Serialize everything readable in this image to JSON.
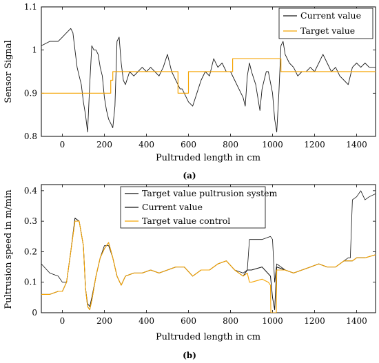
{
  "chart_data": [
    {
      "type": "line",
      "caption": "(a)",
      "xlabel": "Pultruded length in cm",
      "ylabel": "Sensor Signal",
      "xlim": [
        -100,
        1490
      ],
      "ylim": [
        0.8,
        1.1
      ],
      "xticks": [
        0,
        200,
        400,
        600,
        800,
        1000,
        1200,
        1400
      ],
      "yticks": [
        0.8,
        0.9,
        1,
        1.1
      ],
      "ytick_labels": [
        "0.8",
        "0.9",
        "1",
        "1.1"
      ],
      "legend_position": "top-right",
      "colors": {
        "current": "#1a1a1a",
        "target": "#f5a300"
      },
      "series": [
        {
          "name": "Current value",
          "x": [
            -100,
            -60,
            -20,
            0,
            20,
            40,
            50,
            60,
            70,
            80,
            90,
            100,
            110,
            120,
            130,
            140,
            150,
            160,
            170,
            180,
            190,
            200,
            210,
            220,
            230,
            240,
            250,
            260,
            270,
            280,
            290,
            300,
            320,
            340,
            360,
            380,
            400,
            420,
            440,
            460,
            480,
            500,
            520,
            540,
            560,
            570,
            580,
            600,
            620,
            640,
            660,
            680,
            700,
            720,
            740,
            760,
            780,
            800,
            820,
            840,
            860,
            870,
            880,
            890,
            900,
            920,
            940,
            950,
            960,
            970,
            980,
            1000,
            1010,
            1020,
            1030,
            1040,
            1050,
            1060,
            1080,
            1100,
            1120,
            1140,
            1160,
            1180,
            1200,
            1220,
            1240,
            1260,
            1280,
            1300,
            1320,
            1340,
            1360,
            1380,
            1400,
            1420,
            1440,
            1460,
            1480,
            1490
          ],
          "y": [
            1.01,
            1.02,
            1.02,
            1.03,
            1.04,
            1.05,
            1.04,
            1.0,
            0.96,
            0.94,
            0.92,
            0.88,
            0.85,
            0.81,
            0.92,
            1.01,
            1.0,
            1.0,
            0.99,
            0.96,
            0.94,
            0.89,
            0.86,
            0.84,
            0.83,
            0.82,
            0.87,
            1.02,
            1.03,
            0.97,
            0.93,
            0.92,
            0.95,
            0.94,
            0.95,
            0.96,
            0.95,
            0.96,
            0.95,
            0.94,
            0.96,
            0.99,
            0.95,
            0.93,
            0.91,
            0.91,
            0.9,
            0.88,
            0.87,
            0.9,
            0.93,
            0.95,
            0.94,
            0.98,
            0.96,
            0.97,
            0.95,
            0.95,
            0.93,
            0.91,
            0.89,
            0.87,
            0.94,
            0.97,
            0.95,
            0.92,
            0.86,
            0.91,
            0.93,
            0.95,
            0.95,
            0.9,
            0.84,
            0.81,
            0.9,
            1.01,
            1.02,
            0.99,
            0.97,
            0.96,
            0.94,
            0.95,
            0.95,
            0.96,
            0.95,
            0.97,
            0.99,
            0.97,
            0.95,
            0.96,
            0.94,
            0.93,
            0.92,
            0.96,
            0.97,
            0.96,
            0.97,
            0.96,
            0.96,
            0.96
          ]
        },
        {
          "name": "Target value",
          "x": [
            -100,
            230,
            230,
            240,
            240,
            520,
            520,
            550,
            550,
            600,
            600,
            810,
            810,
            1040,
            1040,
            1490
          ],
          "y": [
            0.9,
            0.9,
            0.93,
            0.93,
            0.95,
            0.95,
            0.95,
            0.95,
            0.9,
            0.9,
            0.95,
            0.95,
            0.98,
            0.98,
            0.95,
            0.95
          ]
        }
      ]
    },
    {
      "type": "line",
      "caption": "(b)",
      "xlabel": "Pultruded length in cm",
      "ylabel": "Pultrusion speed in m/min",
      "xlim": [
        -100,
        1490
      ],
      "ylim": [
        0,
        0.42
      ],
      "xticks": [
        0,
        200,
        400,
        600,
        800,
        1000,
        1200,
        1400
      ],
      "yticks": [
        0,
        0.1,
        0.2,
        0.3,
        0.4
      ],
      "ytick_labels": [
        "0",
        "0.1",
        "0.2",
        "0.3",
        "0.4"
      ],
      "legend_position": "top-left",
      "colors": {
        "system": "#111111",
        "current": "#111111",
        "control": "#f5a300"
      },
      "series": [
        {
          "name": "Target value pultrusion system",
          "x": [
            -100,
            -60,
            -20,
            0,
            20,
            40,
            60,
            80,
            100,
            110,
            120,
            130,
            140,
            160,
            180,
            200,
            220,
            240,
            260,
            280,
            300,
            340,
            380,
            420,
            460,
            500,
            540,
            580,
            620,
            660,
            700,
            740,
            780,
            820,
            860,
            880,
            890,
            900,
            950,
            990,
            1000,
            1010,
            1020,
            1060,
            1100,
            1140,
            1180,
            1220,
            1260,
            1300,
            1340,
            1360,
            1370,
            1380,
            1400,
            1420,
            1440,
            1460,
            1490
          ],
          "y": [
            0.16,
            0.13,
            0.12,
            0.1,
            0.1,
            0.2,
            0.3,
            0.3,
            0.22,
            0.08,
            0.03,
            0.02,
            0.05,
            0.12,
            0.18,
            0.22,
            0.22,
            0.18,
            0.12,
            0.09,
            0.12,
            0.13,
            0.13,
            0.14,
            0.13,
            0.14,
            0.15,
            0.15,
            0.12,
            0.14,
            0.14,
            0.16,
            0.17,
            0.14,
            0.13,
            0.14,
            0.24,
            0.24,
            0.24,
            0.25,
            0.24,
            0.1,
            0.16,
            0.14,
            0.13,
            0.14,
            0.15,
            0.16,
            0.15,
            0.15,
            0.17,
            0.18,
            0.18,
            0.37,
            0.38,
            0.4,
            0.37,
            0.38,
            0.39
          ]
        },
        {
          "name": "Current value",
          "x": [
            -100,
            -60,
            -20,
            0,
            20,
            40,
            60,
            80,
            100,
            110,
            120,
            130,
            140,
            160,
            180,
            200,
            220,
            240,
            260,
            280,
            300,
            340,
            380,
            420,
            460,
            500,
            540,
            580,
            620,
            660,
            700,
            740,
            780,
            820,
            860,
            880,
            900,
            950,
            990,
            1000,
            1010,
            1020,
            1060,
            1100,
            1140,
            1180,
            1220,
            1260,
            1300,
            1340,
            1360,
            1380,
            1400,
            1440,
            1490
          ],
          "y": [
            0.06,
            0.06,
            0.07,
            0.07,
            0.1,
            0.2,
            0.31,
            0.3,
            0.22,
            0.08,
            0.02,
            0.01,
            0.04,
            0.12,
            0.18,
            0.21,
            0.23,
            0.18,
            0.12,
            0.09,
            0.12,
            0.13,
            0.13,
            0.14,
            0.13,
            0.14,
            0.15,
            0.15,
            0.12,
            0.14,
            0.14,
            0.16,
            0.17,
            0.14,
            0.12,
            0.14,
            0.14,
            0.15,
            0.12,
            0.05,
            0.01,
            0.15,
            0.14,
            0.13,
            0.14,
            0.15,
            0.16,
            0.15,
            0.15,
            0.17,
            0.17,
            0.17,
            0.18,
            0.18,
            0.19
          ]
        },
        {
          "name": "Target value control",
          "x": [
            -100,
            -60,
            -20,
            0,
            20,
            40,
            60,
            80,
            100,
            110,
            120,
            130,
            140,
            160,
            180,
            200,
            220,
            240,
            260,
            280,
            300,
            340,
            380,
            420,
            460,
            500,
            540,
            580,
            620,
            660,
            700,
            740,
            780,
            820,
            860,
            880,
            890,
            900,
            950,
            980,
            990,
            992,
            1018,
            1020,
            1060,
            1100,
            1140,
            1180,
            1220,
            1260,
            1300,
            1340,
            1360,
            1380,
            1400,
            1440,
            1490
          ],
          "y": [
            0.06,
            0.06,
            0.07,
            0.07,
            0.1,
            0.2,
            0.3,
            0.3,
            0.22,
            0.08,
            0.02,
            0.01,
            0.04,
            0.12,
            0.18,
            0.21,
            0.23,
            0.18,
            0.12,
            0.09,
            0.12,
            0.13,
            0.13,
            0.14,
            0.13,
            0.14,
            0.15,
            0.15,
            0.12,
            0.14,
            0.14,
            0.16,
            0.17,
            0.14,
            0.12,
            0.13,
            0.1,
            0.1,
            0.11,
            0.1,
            0.09,
            0.0,
            0.0,
            0.14,
            0.14,
            0.13,
            0.14,
            0.15,
            0.16,
            0.15,
            0.15,
            0.17,
            0.17,
            0.17,
            0.18,
            0.18,
            0.19
          ]
        }
      ]
    }
  ]
}
